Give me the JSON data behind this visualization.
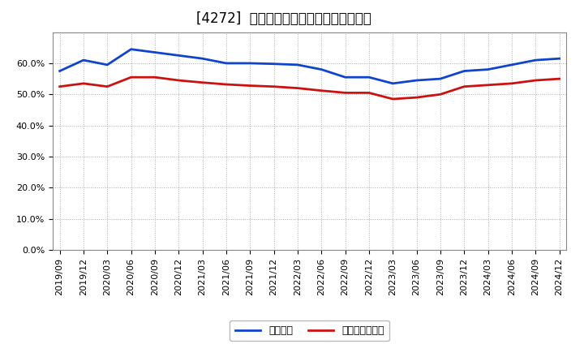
{
  "title": "[4272]  固定比率、固定長期適合率の推移",
  "background_color": "#ffffff",
  "plot_background_color": "#ffffff",
  "grid_color": "#aaaaaa",
  "x_labels": [
    "2019/09",
    "2019/12",
    "2020/03",
    "2020/06",
    "2020/09",
    "2020/12",
    "2021/03",
    "2021/06",
    "2021/09",
    "2021/12",
    "2022/03",
    "2022/06",
    "2022/09",
    "2022/12",
    "2023/03",
    "2023/06",
    "2023/09",
    "2023/12",
    "2024/03",
    "2024/06",
    "2024/09",
    "2024/12"
  ],
  "fixed_ratio": [
    57.5,
    61.0,
    59.5,
    64.5,
    63.5,
    62.5,
    61.5,
    60.0,
    60.0,
    59.8,
    59.5,
    58.0,
    55.5,
    55.5,
    53.5,
    54.5,
    55.0,
    57.5,
    58.0,
    59.5,
    61.0,
    61.5
  ],
  "fixed_long_ratio": [
    52.5,
    53.5,
    52.5,
    55.5,
    55.5,
    54.5,
    53.8,
    53.2,
    52.8,
    52.5,
    52.0,
    51.2,
    50.5,
    50.5,
    48.5,
    49.0,
    50.0,
    52.5,
    53.0,
    53.5,
    54.5,
    55.0
  ],
  "line1_color": "#1144cc",
  "line2_color": "#cc1111",
  "line_width": 2.0,
  "legend1": "固定比率",
  "legend2": "固定長期適合率",
  "ylim": [
    0,
    70
  ],
  "yticks": [
    0,
    10,
    20,
    30,
    40,
    50,
    60
  ],
  "title_fontsize": 12,
  "tick_fontsize": 8,
  "legend_fontsize": 9
}
